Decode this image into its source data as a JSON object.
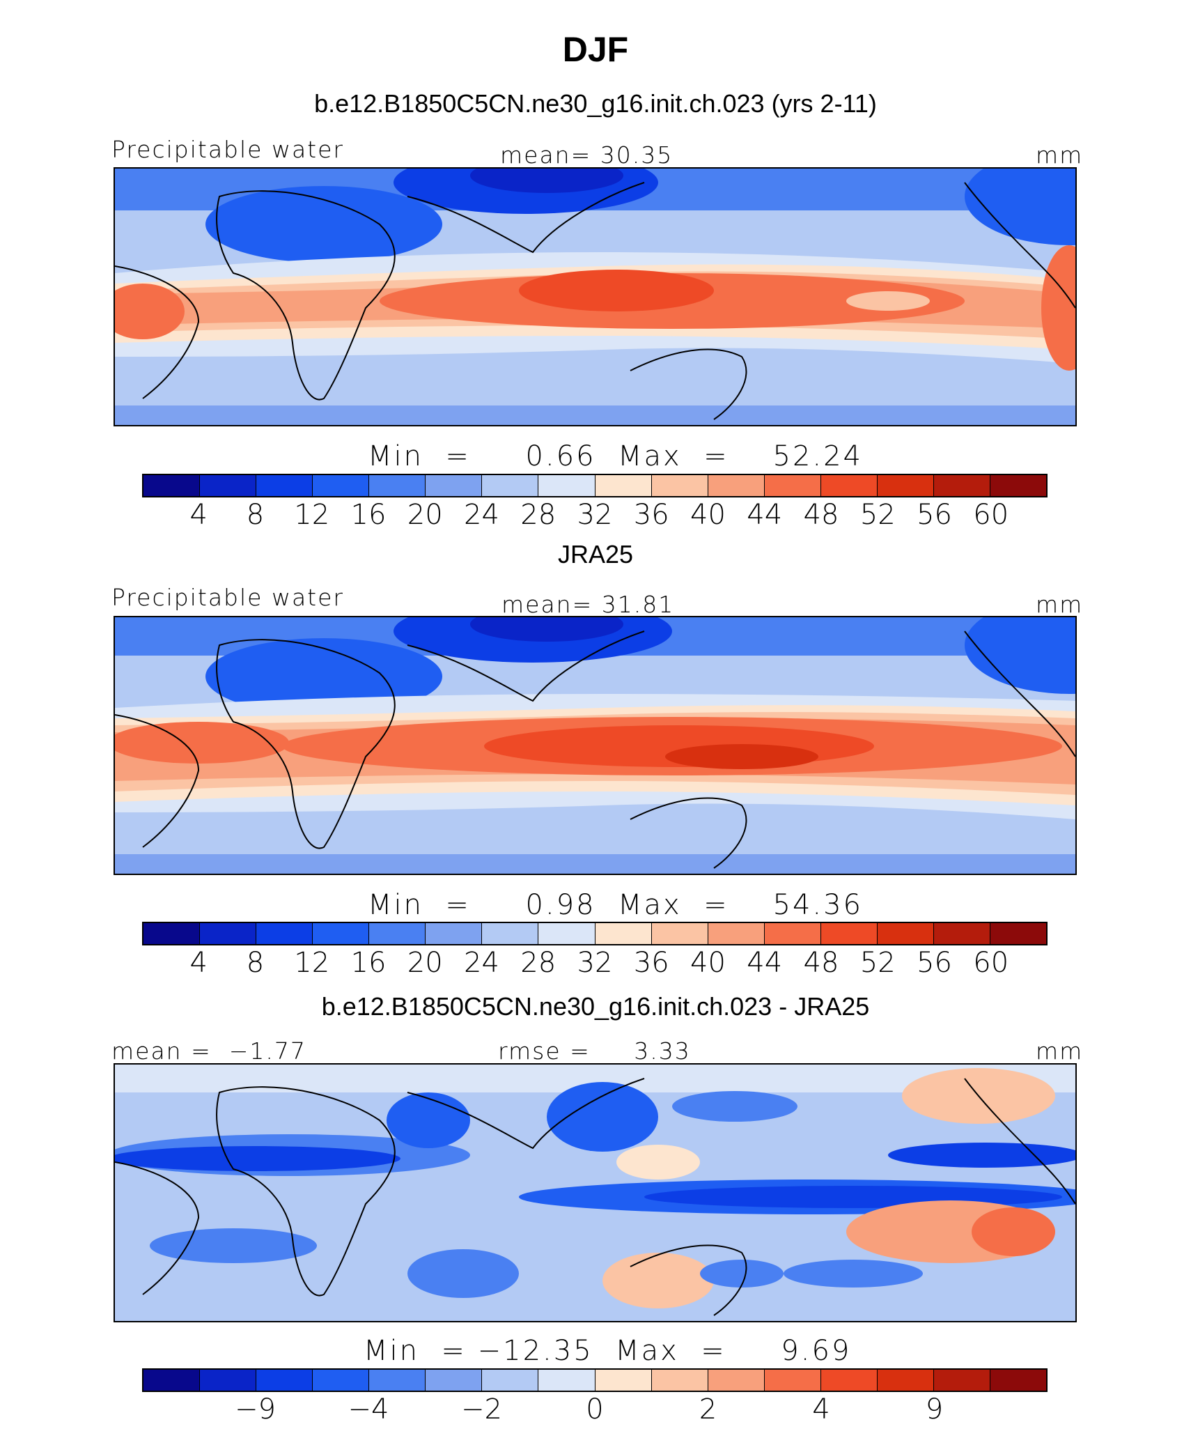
{
  "title": "DJF",
  "palette": [
    "#08088c",
    "#0a24c8",
    "#0c3ee6",
    "#1f5ef2",
    "#4a80f2",
    "#7ea2f0",
    "#b3caf4",
    "#dbe6f8",
    "#fde5cf",
    "#fbc4a4",
    "#f8a07c",
    "#f56e48",
    "#ee4a26",
    "#d8300f",
    "#b41c0c",
    "#8c0a0a"
  ],
  "panels": [
    {
      "title": "b.e12.B1850C5CN.ne30_g16.init.ch.023 (yrs 2-11)",
      "left_label": "Precipitable water",
      "center_label": "mean=   30.35",
      "units": "mm",
      "stats": "Min  =     0.66  Max  =    52.24",
      "colorbar_ticks": [
        "4",
        "8",
        "12",
        "16",
        "20",
        "24",
        "28",
        "32",
        "36",
        "40",
        "44",
        "48",
        "52",
        "56",
        "60"
      ]
    },
    {
      "title": "JRA25",
      "left_label": "Precipitable water",
      "center_label": "mean=   31.81",
      "units": "mm",
      "stats": "Min  =     0.98  Max  =    54.36",
      "colorbar_ticks": [
        "4",
        "8",
        "12",
        "16",
        "20",
        "24",
        "28",
        "32",
        "36",
        "40",
        "44",
        "48",
        "52",
        "56",
        "60"
      ]
    },
    {
      "title": "b.e12.B1850C5CN.ne30_g16.init.ch.023 - JRA25",
      "left_label": "mean =  −1.77",
      "center_label": "rmse =     3.33",
      "units": "mm",
      "stats": "Min  = −12.35  Max  =     9.69",
      "colorbar_ticks": [
        "−9",
        "−4",
        "−2",
        "0",
        "2",
        "4",
        "9"
      ]
    }
  ],
  "chart_data": {
    "type": "heatmap",
    "title": "DJF",
    "variable": "Precipitable water",
    "units": "mm",
    "series": [
      {
        "name": "b.e12.B1850C5CN.ne30_g16.init.ch.023 (yrs 2-11)",
        "mean": 30.35,
        "min": 0.66,
        "max": 52.24
      },
      {
        "name": "JRA25",
        "mean": 31.81,
        "min": 0.98,
        "max": 54.36
      },
      {
        "name": "b.e12.B1850C5CN.ne30_g16.init.ch.023 - JRA25",
        "mean": -1.77,
        "rmse": 3.33,
        "min": -12.35,
        "max": 9.69
      }
    ],
    "contour_levels_abs": [
      4,
      8,
      12,
      16,
      20,
      24,
      28,
      32,
      36,
      40,
      44,
      48,
      52,
      56,
      60
    ],
    "contour_levels_diff": [
      -9,
      -4,
      -2,
      0,
      2,
      4,
      9
    ]
  }
}
